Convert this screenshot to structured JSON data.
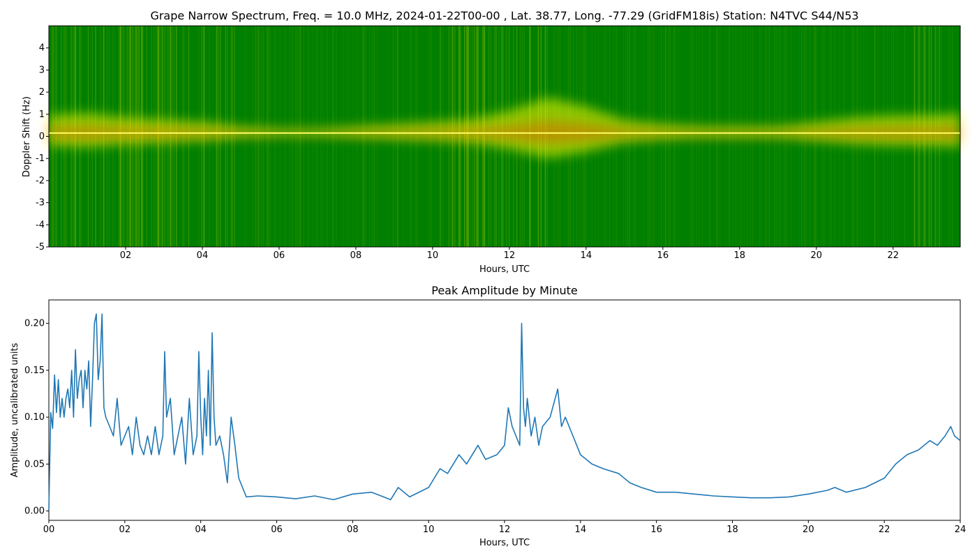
{
  "chart_data": [
    {
      "type": "heatmap",
      "title": "Grape Narrow Spectrum, Freq. = 10.0 MHz, 2024-01-22T00-00 , Lat.  38.77, Long. -77.29 (GridFM18is) Station: N4TVC S44/N53",
      "xlabel": "Hours, UTC",
      "ylabel": "Doppler Shift (Hz)",
      "xlim": [
        0,
        23.75
      ],
      "ylim": [
        -5,
        5
      ],
      "x_ticks": [
        2,
        4,
        6,
        8,
        10,
        12,
        14,
        16,
        18,
        20,
        22
      ],
      "x_tick_labels": [
        "02",
        "04",
        "06",
        "08",
        "10",
        "12",
        "14",
        "16",
        "18",
        "20",
        "22"
      ],
      "y_ticks": [
        -5,
        -4,
        -3,
        -2,
        -1,
        0,
        1,
        2,
        3,
        4
      ],
      "y_tick_labels": [
        "-5",
        "-4",
        "-3",
        "-2",
        "-1",
        "0",
        "1",
        "2",
        "3",
        "4"
      ],
      "colors": {
        "background": "#007f00",
        "mid": "#ffff00",
        "high": "#ff4000"
      },
      "carrier_doppler_hz": 0.15,
      "spread_hz_by_hour": [
        [
          0,
          0.8
        ],
        [
          1,
          0.9
        ],
        [
          2,
          0.7
        ],
        [
          3,
          0.6
        ],
        [
          4,
          0.5
        ],
        [
          5,
          0.3
        ],
        [
          6,
          0.2
        ],
        [
          7,
          0.2
        ],
        [
          8,
          0.3
        ],
        [
          9,
          0.4
        ],
        [
          10,
          0.5
        ],
        [
          11,
          0.6
        ],
        [
          12,
          1.0
        ],
        [
          13,
          1.6
        ],
        [
          14,
          1.2
        ],
        [
          15,
          0.6
        ],
        [
          16,
          0.4
        ],
        [
          17,
          0.3
        ],
        [
          18,
          0.3
        ],
        [
          19,
          0.3
        ],
        [
          20,
          0.5
        ],
        [
          21,
          0.7
        ],
        [
          22,
          0.8
        ],
        [
          23,
          0.8
        ],
        [
          23.75,
          0.9
        ]
      ]
    },
    {
      "type": "line",
      "title": "Peak Amplitude by Minute",
      "xlabel": "Hours, UTC",
      "ylabel": "Amplitude, uncalibrated units",
      "xlim": [
        0,
        24
      ],
      "ylim": [
        -0.01,
        0.225
      ],
      "x_ticks": [
        0,
        2,
        4,
        6,
        8,
        10,
        12,
        14,
        16,
        18,
        20,
        22,
        24
      ],
      "x_tick_labels": [
        "00",
        "02",
        "04",
        "06",
        "08",
        "10",
        "12",
        "14",
        "16",
        "18",
        "20",
        "22",
        "24"
      ],
      "y_ticks": [
        0,
        0.05,
        0.1,
        0.15,
        0.2
      ],
      "y_tick_labels": [
        "0.00",
        "0.05",
        "0.10",
        "0.15",
        "0.20"
      ],
      "line_color": "#1f77b4",
      "series": [
        {
          "x": [
            0,
            0.05,
            0.1,
            0.15,
            0.2,
            0.25,
            0.3,
            0.35,
            0.4,
            0.45,
            0.5,
            0.55,
            0.6,
            0.65,
            0.7,
            0.75,
            0.8,
            0.85,
            0.9,
            0.95,
            1.0,
            1.05,
            1.1,
            1.15,
            1.2,
            1.25,
            1.3,
            1.35,
            1.4,
            1.45,
            1.5,
            1.6,
            1.7,
            1.8,
            1.9,
            2.0,
            2.1,
            2.2,
            2.3,
            2.4,
            2.5,
            2.6,
            2.7,
            2.8,
            2.9,
            3.0,
            3.05,
            3.1,
            3.2,
            3.3,
            3.4,
            3.5,
            3.6,
            3.7,
            3.8,
            3.9,
            3.95,
            4.0,
            4.05,
            4.1,
            4.15,
            4.2,
            4.25,
            4.3,
            4.35,
            4.4,
            4.5,
            4.6,
            4.7,
            4.8,
            4.9,
            5.0,
            5.2,
            5.5,
            6.0,
            6.5,
            7.0,
            7.5,
            8.0,
            8.5,
            9.0,
            9.2,
            9.5,
            10.0,
            10.3,
            10.5,
            10.8,
            11.0,
            11.3,
            11.5,
            11.8,
            12.0,
            12.1,
            12.2,
            12.3,
            12.4,
            12.45,
            12.5,
            12.55,
            12.6,
            12.7,
            12.8,
            12.9,
            13.0,
            13.2,
            13.4,
            13.5,
            13.6,
            13.8,
            14.0,
            14.3,
            14.6,
            15.0,
            15.3,
            15.6,
            16.0,
            16.5,
            17.0,
            17.5,
            18.0,
            18.5,
            19.0,
            19.5,
            20.0,
            20.5,
            20.7,
            21.0,
            21.5,
            22.0,
            22.3,
            22.6,
            22.9,
            23.2,
            23.4,
            23.6,
            23.75,
            23.85,
            24.0
          ],
          "values": [
            0.001,
            0.105,
            0.088,
            0.145,
            0.105,
            0.14,
            0.1,
            0.12,
            0.1,
            0.12,
            0.13,
            0.11,
            0.15,
            0.1,
            0.172,
            0.12,
            0.14,
            0.15,
            0.11,
            0.15,
            0.13,
            0.16,
            0.09,
            0.14,
            0.2,
            0.21,
            0.14,
            0.16,
            0.21,
            0.11,
            0.1,
            0.09,
            0.08,
            0.12,
            0.07,
            0.08,
            0.09,
            0.06,
            0.1,
            0.07,
            0.06,
            0.08,
            0.06,
            0.09,
            0.06,
            0.08,
            0.17,
            0.1,
            0.12,
            0.06,
            0.08,
            0.1,
            0.05,
            0.12,
            0.06,
            0.08,
            0.17,
            0.1,
            0.06,
            0.12,
            0.08,
            0.15,
            0.07,
            0.19,
            0.1,
            0.07,
            0.08,
            0.06,
            0.03,
            0.1,
            0.07,
            0.035,
            0.015,
            0.016,
            0.015,
            0.013,
            0.016,
            0.012,
            0.018,
            0.02,
            0.012,
            0.025,
            0.015,
            0.025,
            0.045,
            0.04,
            0.06,
            0.05,
            0.07,
            0.055,
            0.06,
            0.07,
            0.11,
            0.09,
            0.08,
            0.07,
            0.2,
            0.11,
            0.09,
            0.12,
            0.08,
            0.1,
            0.07,
            0.09,
            0.1,
            0.13,
            0.09,
            0.1,
            0.08,
            0.06,
            0.05,
            0.045,
            0.04,
            0.03,
            0.025,
            0.02,
            0.02,
            0.018,
            0.016,
            0.015,
            0.014,
            0.014,
            0.015,
            0.018,
            0.022,
            0.025,
            0.02,
            0.025,
            0.035,
            0.05,
            0.06,
            0.065,
            0.075,
            0.07,
            0.08,
            0.09,
            0.08,
            0.075
          ]
        }
      ]
    }
  ]
}
